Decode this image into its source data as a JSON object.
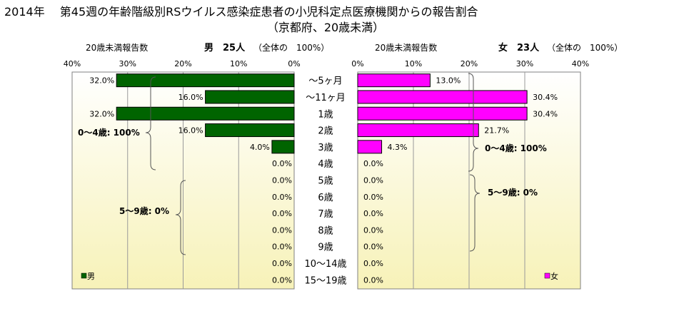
{
  "chart_data": {
    "type": "bar",
    "title": "2014年　 第45週の年齢階級別RSウイルス感染症患者の小児科定点医療機関からの報告割合",
    "subtitle": "（京都府、20歳未満）",
    "categories": [
      "～5ヶ月",
      "～11ヶ月",
      "1歳",
      "2歳",
      "3歳",
      "4歳",
      "5歳",
      "6歳",
      "7歳",
      "8歳",
      "9歳",
      "10～14歳",
      "15～19歳"
    ],
    "xlim": [
      0,
      40
    ],
    "x_ticks": [
      "40%",
      "30%",
      "20%",
      "10%",
      "0%"
    ],
    "x_ticks_right": [
      "0%",
      "10%",
      "20%",
      "30%",
      "40%"
    ],
    "left_panel": {
      "axis_label": "20歳未満報告数",
      "header_main": "男　25人",
      "header_note": "（全体の　100%）",
      "series": [
        {
          "name": "男",
          "color": "#006400",
          "values": [
            32.0,
            16.0,
            32.0,
            16.0,
            4.0,
            0.0,
            0.0,
            0.0,
            0.0,
            0.0,
            0.0,
            0.0,
            0.0
          ],
          "labels": [
            "32.0%",
            "16.0%",
            "32.0%",
            "16.0%",
            "4.0%",
            "0.0%",
            "0.0%",
            "0.0%",
            "0.0%",
            "0.0%",
            "0.0%",
            "0.0%",
            "0.0%"
          ]
        }
      ],
      "annotations": [
        "0～4歳: 100%",
        "5～9歳: 0%"
      ]
    },
    "right_panel": {
      "axis_label": "20歳未満報告数",
      "header_main": "女　23人",
      "header_note": "（全体の　100%）",
      "series": [
        {
          "name": "女",
          "color": "#ff00ff",
          "values": [
            13.0,
            30.4,
            30.4,
            21.7,
            4.3,
            0.0,
            0.0,
            0.0,
            0.0,
            0.0,
            0.0,
            0.0,
            0.0
          ],
          "labels": [
            "13.0%",
            "30.4%",
            "30.4%",
            "21.7%",
            "4.3%",
            "0.0%",
            "0.0%",
            "0.0%",
            "0.0%",
            "0.0%",
            "0.0%",
            "0.0%",
            "0.0%"
          ]
        }
      ],
      "annotations": [
        "0～4歳: 100%",
        "5～9歳: 0%"
      ]
    },
    "legend": {
      "placement": "bottom-left / bottom-right",
      "left_label": "男",
      "right_label": "女"
    },
    "background_gradient": [
      "#ffffff",
      "#f7f2b8"
    ],
    "grid": "vertical"
  }
}
